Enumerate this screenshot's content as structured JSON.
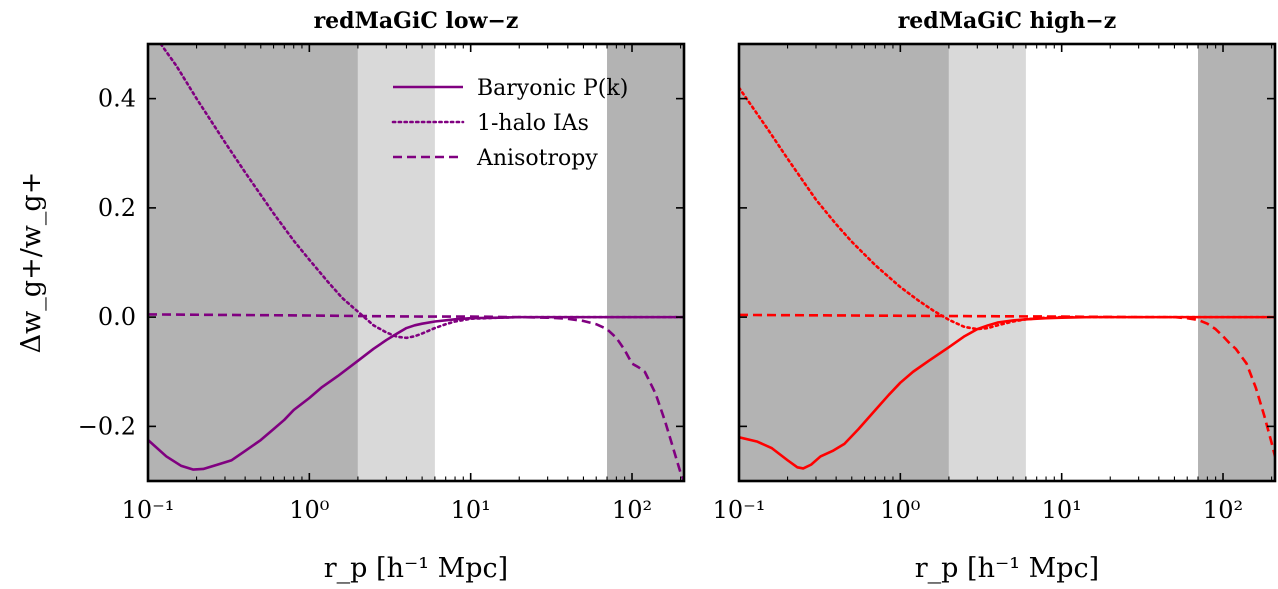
{
  "chart_data": [
    {
      "type": "line",
      "title": "redMaGiC low−z",
      "xlabel": "r_p [h⁻¹ Mpc]",
      "ylabel": "Δw_g+/w_g+",
      "xscale": "log",
      "xlim": [
        0.1,
        210
      ],
      "ylim": [
        -0.3,
        0.5
      ],
      "grid": false,
      "xticks": [
        {
          "value": 0.1,
          "label": "10⁻¹"
        },
        {
          "value": 1,
          "label": "10⁰"
        },
        {
          "value": 10,
          "label": "10¹"
        },
        {
          "value": 100,
          "label": "10²"
        }
      ],
      "yticks": [
        {
          "value": -0.2,
          "label": "−0.2"
        },
        {
          "value": 0.0,
          "label": "0.0"
        },
        {
          "value": 0.2,
          "label": "0.2"
        },
        {
          "value": 0.4,
          "label": "0.4"
        }
      ],
      "ytick_labels_visible": true,
      "shaded_regions": [
        {
          "x0": 0.1,
          "x1": 2.0,
          "color": "#b3b3b3"
        },
        {
          "x0": 2.0,
          "x1": 6.0,
          "color": "#d9d9d9"
        },
        {
          "x0": 70,
          "x1": 210,
          "color": "#b3b3b3"
        }
      ],
      "legend": {
        "placement": "top-center",
        "entries": [
          {
            "label": "Baryonic P(k)",
            "style": "solid"
          },
          {
            "label": "1-halo IAs",
            "style": "dotted"
          },
          {
            "label": "Anisotropy",
            "style": "dashed"
          }
        ]
      },
      "color": "#800080",
      "series": [
        {
          "name": "Baryonic P(k)",
          "style": "solid",
          "x": [
            0.1,
            0.13,
            0.16,
            0.19,
            0.22,
            0.27,
            0.33,
            0.4,
            0.5,
            0.6,
            0.7,
            0.8,
            1.0,
            1.2,
            1.5,
            2.0,
            2.5,
            3.0,
            3.5,
            4.0,
            4.5,
            5.0,
            6.0,
            8.0,
            10,
            15,
            20,
            30,
            50,
            70,
            100,
            150,
            210
          ],
          "y": [
            -0.225,
            -0.255,
            -0.272,
            -0.279,
            -0.278,
            -0.27,
            -0.262,
            -0.245,
            -0.225,
            -0.205,
            -0.188,
            -0.17,
            -0.148,
            -0.128,
            -0.108,
            -0.08,
            -0.058,
            -0.042,
            -0.03,
            -0.02,
            -0.015,
            -0.012,
            -0.008,
            -0.004,
            -0.002,
            -0.001,
            0.0,
            0.0,
            0.0,
            0.0,
            0.0,
            0.0,
            0.0
          ]
        },
        {
          "name": "1-halo IAs",
          "style": "dotted",
          "x": [
            0.12,
            0.15,
            0.2,
            0.3,
            0.4,
            0.6,
            0.8,
            1.0,
            1.3,
            1.6,
            2.0,
            2.5,
            3.0,
            3.5,
            4.0,
            4.5,
            5.0,
            6.0,
            7.0,
            8.0,
            10,
            15,
            20,
            30,
            50,
            100,
            210
          ],
          "y": [
            0.5,
            0.46,
            0.4,
            0.32,
            0.265,
            0.19,
            0.14,
            0.105,
            0.065,
            0.035,
            0.01,
            -0.015,
            -0.028,
            -0.036,
            -0.038,
            -0.035,
            -0.03,
            -0.02,
            -0.013,
            -0.008,
            -0.003,
            -0.001,
            0.0,
            0.0,
            0.0,
            0.0,
            0.0
          ]
        },
        {
          "name": "Anisotropy",
          "style": "dashed",
          "x": [
            0.1,
            0.3,
            1.0,
            2.0,
            5.0,
            10,
            20,
            30,
            40,
            50,
            60,
            70,
            80,
            90,
            100,
            110,
            120,
            140,
            160,
            180,
            200,
            210
          ],
          "y": [
            0.005,
            0.004,
            0.003,
            0.002,
            0.001,
            0.001,
            0.0,
            -0.001,
            -0.003,
            -0.007,
            -0.013,
            -0.022,
            -0.038,
            -0.06,
            -0.085,
            -0.092,
            -0.1,
            -0.14,
            -0.19,
            -0.24,
            -0.285,
            -0.3
          ]
        }
      ]
    },
    {
      "type": "line",
      "title": "redMaGiC high−z",
      "xlabel": "r_p [h⁻¹ Mpc]",
      "ylabel": "",
      "xscale": "log",
      "xlim": [
        0.1,
        210
      ],
      "ylim": [
        -0.3,
        0.5
      ],
      "grid": false,
      "xticks": [
        {
          "value": 0.1,
          "label": "10⁻¹"
        },
        {
          "value": 1,
          "label": "10⁰"
        },
        {
          "value": 10,
          "label": "10¹"
        },
        {
          "value": 100,
          "label": "10²"
        }
      ],
      "yticks": [
        {
          "value": -0.2,
          "label": ""
        },
        {
          "value": 0.0,
          "label": ""
        },
        {
          "value": 0.2,
          "label": ""
        },
        {
          "value": 0.4,
          "label": ""
        }
      ],
      "ytick_labels_visible": false,
      "shaded_regions": [
        {
          "x0": 0.1,
          "x1": 2.0,
          "color": "#b3b3b3"
        },
        {
          "x0": 2.0,
          "x1": 6.0,
          "color": "#d9d9d9"
        },
        {
          "x0": 70,
          "x1": 210,
          "color": "#b3b3b3"
        }
      ],
      "legend": null,
      "color": "#ff0000",
      "series": [
        {
          "name": "Baryonic P(k)",
          "style": "solid",
          "x": [
            0.1,
            0.13,
            0.16,
            0.2,
            0.23,
            0.25,
            0.28,
            0.32,
            0.38,
            0.45,
            0.55,
            0.7,
            0.85,
            1.0,
            1.2,
            1.5,
            2.0,
            2.5,
            3.0,
            3.5,
            4.0,
            5.0,
            6.0,
            8.0,
            10,
            15,
            20,
            30,
            50,
            70,
            100,
            150,
            210
          ],
          "y": [
            -0.22,
            -0.228,
            -0.24,
            -0.262,
            -0.275,
            -0.277,
            -0.27,
            -0.255,
            -0.245,
            -0.232,
            -0.205,
            -0.17,
            -0.142,
            -0.12,
            -0.1,
            -0.08,
            -0.055,
            -0.035,
            -0.022,
            -0.015,
            -0.01,
            -0.006,
            -0.004,
            -0.002,
            -0.001,
            0.0,
            0.0,
            0.0,
            0.0,
            0.0,
            0.0,
            0.0,
            0.0
          ]
        },
        {
          "name": "1-halo IAs",
          "style": "dotted",
          "x": [
            0.1,
            0.15,
            0.2,
            0.3,
            0.4,
            0.5,
            0.7,
            1.0,
            1.3,
            1.6,
            2.0,
            2.5,
            3.0,
            3.5,
            4.0,
            5.0,
            6.0,
            8.0,
            10,
            20,
            50,
            100,
            210
          ],
          "y": [
            0.42,
            0.345,
            0.29,
            0.215,
            0.17,
            0.138,
            0.095,
            0.055,
            0.03,
            0.012,
            -0.005,
            -0.018,
            -0.022,
            -0.02,
            -0.015,
            -0.008,
            -0.004,
            -0.001,
            0.0,
            0.0,
            0.0,
            0.0,
            0.0
          ]
        },
        {
          "name": "Anisotropy",
          "style": "dashed",
          "x": [
            0.1,
            0.5,
            2.0,
            10,
            30,
            50,
            60,
            70,
            80,
            90,
            100,
            110,
            120,
            140,
            160,
            180,
            200,
            210
          ],
          "y": [
            0.004,
            0.003,
            0.002,
            0.001,
            0.0,
            0.0,
            -0.002,
            -0.005,
            -0.012,
            -0.022,
            -0.035,
            -0.048,
            -0.058,
            -0.085,
            -0.13,
            -0.18,
            -0.23,
            -0.255
          ]
        }
      ]
    }
  ]
}
